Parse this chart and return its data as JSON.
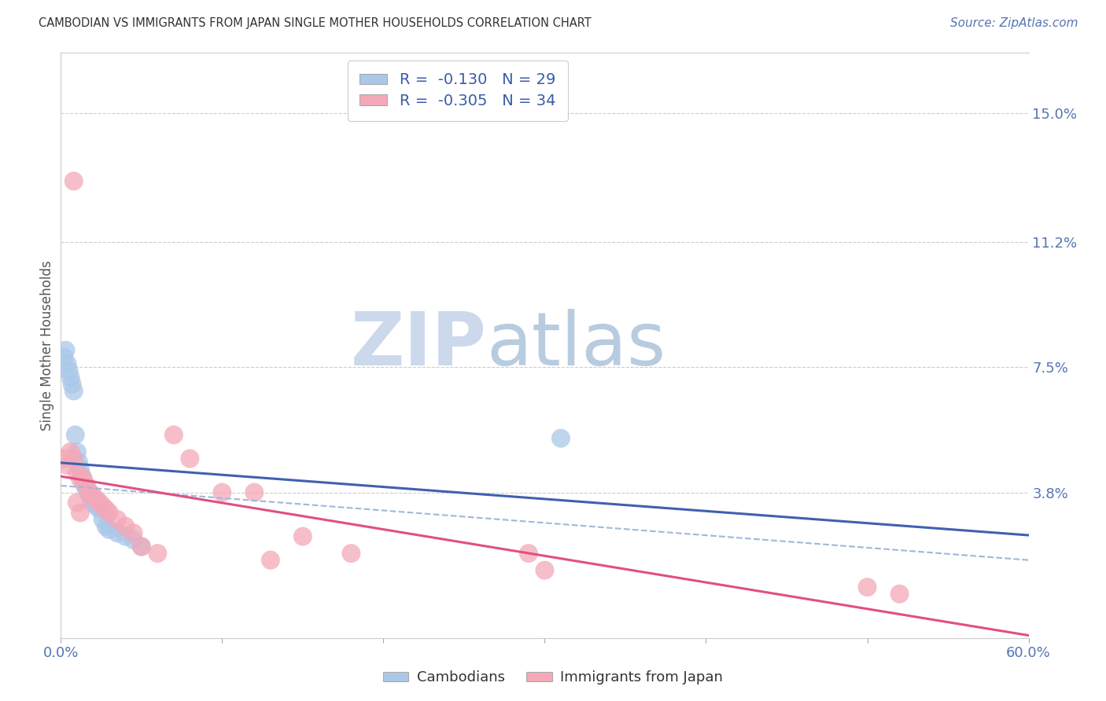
{
  "title": "CAMBODIAN VS IMMIGRANTS FROM JAPAN SINGLE MOTHER HOUSEHOLDS CORRELATION CHART",
  "source": "Source: ZipAtlas.com",
  "ylabel": "Single Mother Households",
  "ytick_labels": [
    "15.0%",
    "11.2%",
    "7.5%",
    "3.8%"
  ],
  "ytick_values": [
    0.15,
    0.112,
    0.075,
    0.038
  ],
  "xlim": [
    0.0,
    0.6
  ],
  "ylim": [
    -0.005,
    0.168
  ],
  "legend_entry1": "R =  -0.130   N = 29",
  "legend_entry2": "R =  -0.305   N = 34",
  "cambodian_color": "#aac8e8",
  "japan_color": "#f4a8b8",
  "trendline_blue_color": "#4060b0",
  "trendline_pink_color": "#e05080",
  "trendline_dash_color": "#a0b8d8",
  "watermark_zip_color": "#c8d8ee",
  "watermark_atlas_color": "#b8cce0",
  "cambodian_x": [
    0.002,
    0.004,
    0.005,
    0.006,
    0.007,
    0.008,
    0.009,
    0.01,
    0.011,
    0.012,
    0.013,
    0.014,
    0.015,
    0.016,
    0.017,
    0.018,
    0.019,
    0.02,
    0.022,
    0.024,
    0.026,
    0.028,
    0.03,
    0.035,
    0.04,
    0.045,
    0.05,
    0.003,
    0.31
  ],
  "cambodian_y": [
    0.078,
    0.076,
    0.074,
    0.072,
    0.07,
    0.068,
    0.055,
    0.05,
    0.047,
    0.045,
    0.043,
    0.041,
    0.04,
    0.039,
    0.038,
    0.037,
    0.036,
    0.035,
    0.034,
    0.033,
    0.03,
    0.028,
    0.027,
    0.026,
    0.025,
    0.024,
    0.022,
    0.08,
    0.054
  ],
  "japan_x": [
    0.002,
    0.004,
    0.006,
    0.008,
    0.01,
    0.012,
    0.014,
    0.016,
    0.018,
    0.02,
    0.022,
    0.024,
    0.026,
    0.028,
    0.03,
    0.035,
    0.04,
    0.045,
    0.05,
    0.06,
    0.07,
    0.08,
    0.1,
    0.12,
    0.15,
    0.18,
    0.008,
    0.29,
    0.5,
    0.52,
    0.3,
    0.01,
    0.012,
    0.13
  ],
  "japan_y": [
    0.048,
    0.046,
    0.05,
    0.048,
    0.044,
    0.042,
    0.042,
    0.04,
    0.038,
    0.037,
    0.036,
    0.035,
    0.034,
    0.033,
    0.032,
    0.03,
    0.028,
    0.026,
    0.022,
    0.02,
    0.055,
    0.048,
    0.038,
    0.038,
    0.025,
    0.02,
    0.13,
    0.02,
    0.01,
    0.008,
    0.015,
    0.035,
    0.032,
    0.018
  ]
}
